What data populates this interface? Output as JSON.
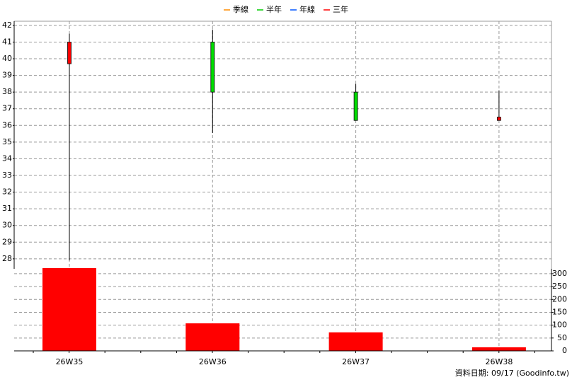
{
  "chart_data": {
    "type": "candlestick",
    "legend": [
      {
        "name": "季線",
        "color": "#ff8c00"
      },
      {
        "name": "半年",
        "color": "#00cc00"
      },
      {
        "name": "年線",
        "color": "#0055ff"
      },
      {
        "name": "三年",
        "color": "#ff0000"
      }
    ],
    "categories": [
      "26W35",
      "26W36",
      "26W37",
      "26W38"
    ],
    "open": [
      39.7,
      41.0,
      38.0,
      36.3
    ],
    "high": [
      41.5,
      41.75,
      38.5,
      38.1
    ],
    "low": [
      27.9,
      35.55,
      36.3,
      36.3
    ],
    "close": [
      41.0,
      38.0,
      36.3,
      36.5
    ],
    "up_color": "#ff0000",
    "down_color": "#00dd00",
    "volume": {
      "values": [
        322,
        107,
        72,
        14
      ],
      "color": "#ff0000",
      "axis": "y2"
    },
    "ylim": [
      27.4,
      42.25
    ],
    "yticks": [
      28,
      29,
      30,
      31,
      32,
      33,
      34,
      35,
      36,
      37,
      38,
      39,
      40,
      41,
      42
    ],
    "y2lim": [
      0,
      319
    ],
    "y2ticks": [
      0,
      50,
      100,
      150,
      200,
      250,
      300
    ],
    "grid": true,
    "footer": "資料日期: 09/17  (Goodinfo.tw)"
  }
}
